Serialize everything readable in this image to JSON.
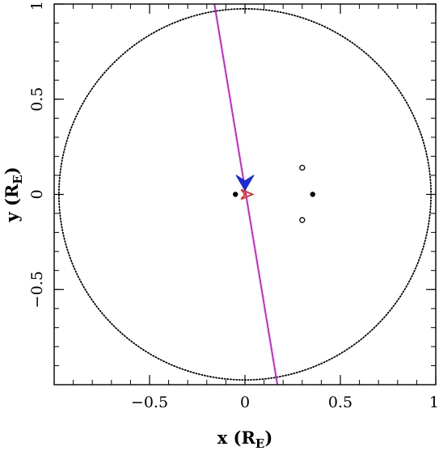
{
  "chart_data": {
    "type": "scatter",
    "xlim": [
      -1,
      1
    ],
    "ylim": [
      -1,
      1
    ],
    "grid": false,
    "x_ticks": [
      {
        "value": -0.5,
        "label": "−0.5"
      },
      {
        "value": 0,
        "label": "0"
      },
      {
        "value": 0.5,
        "label": "0.5"
      },
      {
        "value": 1,
        "label": "1"
      }
    ],
    "y_ticks": [
      {
        "value": -0.5,
        "label": "−0.5"
      },
      {
        "value": 0,
        "label": "0"
      },
      {
        "value": 0.5,
        "label": "0.5"
      },
      {
        "value": 1,
        "label": "1"
      }
    ],
    "minor_tick_step": 0.1,
    "xlabel": {
      "main": "x (R",
      "sub": "E",
      "close": ")"
    },
    "ylabel": {
      "main": "y (R",
      "sub": "E",
      "close": ")"
    },
    "einstein_ring": {
      "center": [
        0,
        0
      ],
      "radius": 0.975,
      "color": "#000000",
      "style": "dotted"
    },
    "source_trajectory": {
      "points": [
        [
          -0.16,
          1.0
        ],
        [
          0.17,
          -1.0
        ]
      ],
      "color": "#d020d0"
    },
    "source_position": {
      "x": 0.0,
      "y": 0.05,
      "color": "#1a2ad8",
      "marker": "arrowhead"
    },
    "caustic": {
      "color": "#e03020",
      "points": [
        [
          0.04,
          0.0
        ],
        [
          -0.02,
          0.025
        ],
        [
          0.0,
          0.0
        ],
        [
          -0.02,
          -0.025
        ]
      ]
    },
    "lens_positions": [
      {
        "x": -0.05,
        "y": 0.0,
        "marker": "filled-circle"
      },
      {
        "x": 0.355,
        "y": 0.0,
        "marker": "filled-circle"
      }
    ],
    "image_positions": [
      {
        "x": 0.3,
        "y": 0.14,
        "marker": "open-circle"
      },
      {
        "x": 0.3,
        "y": -0.135,
        "marker": "open-circle"
      }
    ]
  }
}
